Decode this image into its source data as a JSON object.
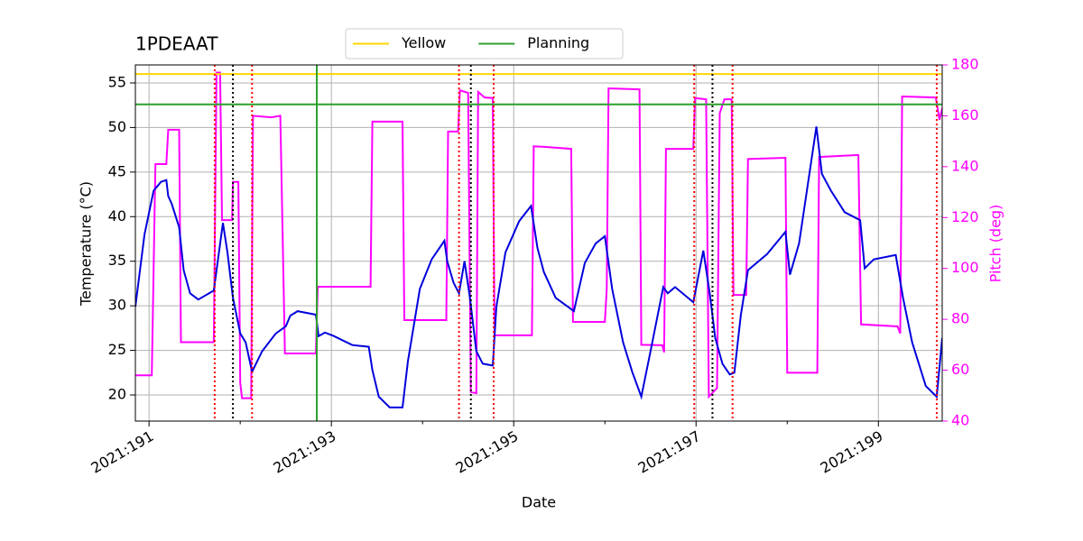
{
  "chart_data": {
    "type": "line",
    "title": "1PDEAAT",
    "xlabel": "Date",
    "ylabel": "Temperature (°C)",
    "y2label": "Pitch (deg)",
    "xlim": [
      190.85,
      199.7
    ],
    "xticks": [
      {
        "value": 191,
        "label": "2021:191"
      },
      {
        "value": 193,
        "label": "2021:193"
      },
      {
        "value": 195,
        "label": "2021:195"
      },
      {
        "value": 197,
        "label": "2021:197"
      },
      {
        "value": 199,
        "label": "2021:199"
      }
    ],
    "xminorticks": [
      192,
      194,
      196,
      198
    ],
    "ylim": [
      17.07,
      57.02
    ],
    "yticks": [
      20,
      25,
      30,
      35,
      40,
      45,
      50,
      55
    ],
    "y2lim": [
      40,
      180
    ],
    "y2ticks": [
      40,
      60,
      80,
      100,
      120,
      140,
      160,
      180
    ],
    "y2color": "#ff00ff",
    "grid": true,
    "legend": "top",
    "series": [
      {
        "color": "#0000dd",
        "x": [
          190.85,
          190.95,
          191.05,
          191.13,
          191.19,
          191.21,
          191.25,
          191.33,
          191.38,
          191.45,
          191.54,
          191.71,
          191.81,
          191.86,
          191.92,
          192.0,
          192.06,
          192.13,
          192.24,
          192.39,
          192.5,
          192.55,
          192.63,
          192.83,
          192.86,
          192.93,
          193.03,
          193.23,
          193.41,
          193.45,
          193.52,
          193.64,
          193.78,
          193.84,
          193.97,
          194.1,
          194.24,
          194.27,
          194.34,
          194.4,
          194.46,
          194.52,
          194.59,
          194.66,
          194.77,
          194.81,
          194.91,
          195.06,
          195.19,
          195.26,
          195.33,
          195.46,
          195.66,
          195.78,
          195.9,
          196.0,
          196.08,
          196.2,
          196.3,
          196.4,
          196.51,
          196.64,
          196.69,
          196.77,
          196.97,
          197.08,
          197.15,
          197.21,
          197.29,
          197.37,
          197.42,
          197.49,
          197.57,
          197.78,
          197.98,
          198.03,
          198.13,
          198.32,
          198.38,
          198.48,
          198.63,
          198.8,
          198.85,
          198.95,
          199.19,
          199.27,
          199.37,
          199.52,
          199.64,
          199.7
        ],
        "values": [
          29.9,
          38.0,
          42.9,
          43.9,
          44.1,
          42.3,
          41.4,
          38.8,
          34.0,
          31.4,
          30.7,
          31.7,
          39.3,
          36.0,
          30.9,
          26.9,
          25.9,
          22.6,
          24.9,
          26.9,
          27.7,
          28.9,
          29.4,
          29.0,
          26.6,
          27.0,
          26.6,
          25.6,
          25.4,
          22.8,
          19.8,
          18.6,
          18.6,
          23.8,
          31.9,
          35.2,
          37.3,
          35.0,
          32.6,
          31.4,
          35.0,
          30.9,
          24.9,
          23.5,
          23.3,
          29.9,
          36.0,
          39.5,
          41.2,
          36.5,
          33.8,
          30.9,
          29.4,
          34.8,
          37.0,
          37.8,
          31.9,
          25.9,
          22.6,
          19.8,
          25.4,
          32.1,
          31.4,
          32.1,
          30.4,
          36.2,
          31.4,
          26.4,
          23.5,
          22.3,
          22.5,
          28.9,
          34.0,
          35.8,
          38.3,
          33.5,
          37.0,
          50.1,
          44.8,
          42.9,
          40.5,
          39.6,
          34.2,
          35.2,
          35.7,
          30.9,
          25.9,
          21.0,
          19.8,
          26.4
        ]
      },
      {
        "color": "#ff00ff",
        "axis": "y2",
        "x": [
          190.85,
          191.03,
          191.07,
          191.19,
          191.21,
          191.33,
          191.35,
          191.71,
          191.74,
          191.78,
          191.8,
          191.91,
          191.92,
          191.98,
          192.0,
          192.02,
          192.12,
          192.14,
          192.34,
          192.44,
          192.49,
          192.83,
          192.85,
          193.43,
          193.45,
          193.78,
          193.8,
          194.26,
          194.28,
          194.39,
          194.41,
          194.5,
          194.53,
          194.59,
          194.61,
          194.68,
          194.77,
          194.79,
          195.2,
          195.22,
          195.32,
          195.63,
          195.65,
          196.0,
          196.02,
          196.04,
          196.38,
          196.4,
          196.63,
          196.65,
          196.67,
          196.97,
          196.99,
          197.11,
          197.14,
          197.23,
          197.26,
          197.31,
          197.39,
          197.41,
          197.55,
          197.57,
          197.98,
          198.0,
          198.33,
          198.35,
          198.78,
          198.81,
          199.21,
          199.24,
          199.26,
          199.63,
          199.67,
          199.7
        ],
        "values": [
          58,
          58,
          141,
          141,
          154.5,
          154.5,
          71,
          71,
          177,
          177,
          119,
          119,
          134,
          134,
          55,
          49,
          49,
          160,
          159.4,
          160,
          66.6,
          66.6,
          92.8,
          92.8,
          157.7,
          157.7,
          79.7,
          79.7,
          153.8,
          153.8,
          170,
          169,
          51.4,
          51,
          169.4,
          167.2,
          167,
          73.7,
          73.7,
          148,
          147.8,
          147,
          79,
          79,
          92,
          170.8,
          170.4,
          70,
          69.8,
          67,
          147,
          147,
          167,
          166.5,
          49.6,
          53,
          161,
          166.5,
          166.5,
          89.6,
          89.6,
          143,
          143.5,
          59,
          59,
          143.8,
          144.6,
          78,
          77.2,
          74.4,
          167.6,
          167.2,
          158.4,
          163
        ]
      }
    ],
    "reference_lines": [
      {
        "name": "Yellow",
        "color": "#ffd700",
        "y": 56.0
      },
      {
        "name": "Planning",
        "color": "#2ca02c",
        "y": 52.6,
        "x": 192.84
      }
    ],
    "event_lines": [
      {
        "color": "#ff0000",
        "x": [
          191.72,
          192.13,
          194.4,
          194.78,
          196.98,
          197.4,
          199.64
        ]
      },
      {
        "color": "#000000",
        "x": [
          191.92,
          194.53,
          197.18
        ]
      }
    ]
  }
}
